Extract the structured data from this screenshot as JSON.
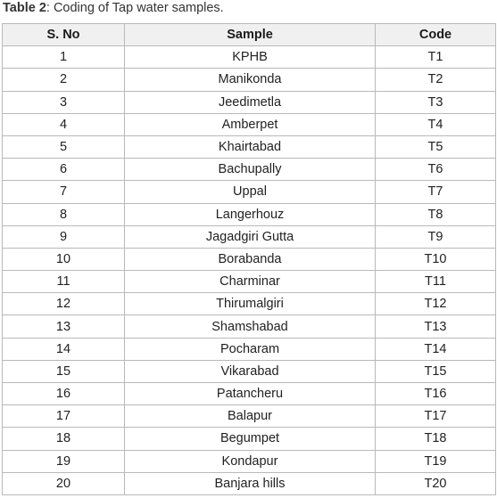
{
  "caption": {
    "label": "Table 2",
    "text": ": Coding of Tap water samples."
  },
  "table": {
    "headers": [
      "S. No",
      "Sample",
      "Code"
    ],
    "rows": [
      [
        "1",
        "KPHB",
        "T1"
      ],
      [
        "2",
        "Manikonda",
        "T2"
      ],
      [
        "3",
        "Jeedimetla",
        "T3"
      ],
      [
        "4",
        "Amberpet",
        "T4"
      ],
      [
        "5",
        "Khairtabad",
        "T5"
      ],
      [
        "6",
        "Bachupally",
        "T6"
      ],
      [
        "7",
        "Uppal",
        "T7"
      ],
      [
        "8",
        "Langerhouz",
        "T8"
      ],
      [
        "9",
        "Jagadgiri Gutta",
        "T9"
      ],
      [
        "10",
        "Borabanda",
        "T10"
      ],
      [
        "11",
        "Charminar",
        "T11"
      ],
      [
        "12",
        "Thirumalgiri",
        "T12"
      ],
      [
        "13",
        "Shamshabad",
        "T13"
      ],
      [
        "14",
        "Pocharam",
        "T14"
      ],
      [
        "15",
        "Vikarabad",
        "T15"
      ],
      [
        "16",
        "Patancheru",
        "T16"
      ],
      [
        "17",
        "Balapur",
        "T17"
      ],
      [
        "18",
        "Begumpet",
        "T18"
      ],
      [
        "19",
        "Kondapur",
        "T19"
      ],
      [
        "20",
        "Banjara hills",
        "T20"
      ]
    ]
  }
}
